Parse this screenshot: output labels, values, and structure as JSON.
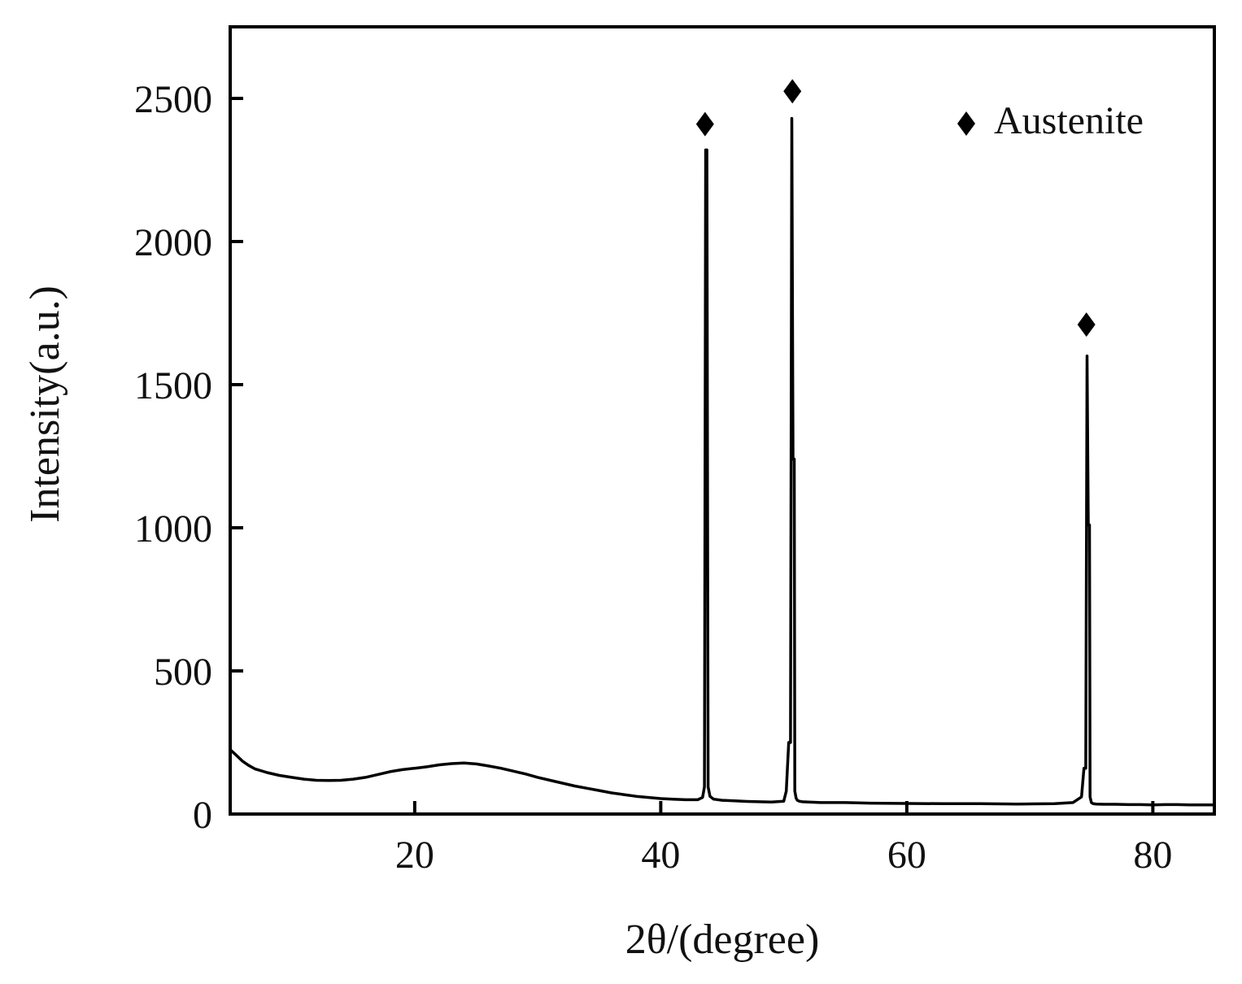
{
  "chart_data": {
    "type": "line",
    "title": "",
    "xlabel": "2θ/(degree)",
    "ylabel": "Intensity(a.u.)",
    "xlim": [
      5,
      85
    ],
    "ylim": [
      0,
      2750
    ],
    "xticks": [
      20,
      40,
      60,
      80
    ],
    "xtick_labels": [
      "20",
      "40",
      "60",
      "80"
    ],
    "yticks": [
      0,
      500,
      1000,
      1500,
      2000,
      2500
    ],
    "ytick_labels": [
      "0",
      "500",
      "1000",
      "1500",
      "2000",
      "2500"
    ],
    "grid": false,
    "legend": {
      "position": "top-right",
      "entries": [
        {
          "marker": "diamond",
          "label": "Austenite"
        }
      ]
    },
    "series": [
      {
        "color": "#000000",
        "x": [
          5,
          5.5,
          6,
          6.5,
          7,
          8,
          9,
          10,
          11,
          12,
          13,
          14,
          15,
          16,
          17,
          18,
          19,
          20,
          21,
          22,
          23,
          24,
          25,
          26,
          27,
          28,
          29,
          30,
          31,
          32,
          33,
          34,
          35,
          36,
          37,
          38,
          39,
          40,
          41,
          42,
          43,
          43.4,
          43.55,
          43.65,
          43.7,
          43.75,
          43.85,
          44.0,
          44.3,
          45,
          46,
          47,
          48,
          49,
          50,
          50.2,
          50.4,
          50.5,
          50.55,
          50.65,
          50.75,
          50.8,
          50.85,
          50.9,
          51.0,
          51.1,
          51.25,
          51.5,
          52,
          53,
          55,
          57,
          60,
          63,
          66,
          69,
          72,
          73.5,
          74.2,
          74.4,
          74.5,
          74.55,
          74.65,
          74.75,
          74.8,
          74.85,
          74.9,
          75.0,
          75.15,
          75.4,
          76,
          77,
          78,
          79,
          80,
          81,
          82,
          83,
          84,
          85
        ],
        "y": [
          225,
          205,
          185,
          170,
          158,
          145,
          135,
          128,
          122,
          118,
          117,
          118,
          122,
          128,
          138,
          148,
          155,
          160,
          165,
          172,
          176,
          178,
          175,
          168,
          160,
          150,
          140,
          128,
          118,
          108,
          98,
          90,
          82,
          74,
          68,
          62,
          58,
          54,
          52,
          50,
          50,
          58,
          95,
          2320,
          2320,
          2320,
          95,
          62,
          52,
          48,
          46,
          44,
          43,
          42,
          45,
          80,
          250,
          250,
          250,
          2430,
          1240,
          1240,
          1240,
          80,
          55,
          48,
          45,
          43,
          42,
          40,
          40,
          38,
          37,
          36,
          36,
          35,
          36,
          40,
          60,
          160,
          160,
          160,
          1600,
          1010,
          1010,
          1010,
          60,
          40,
          36,
          35,
          34,
          34,
          33,
          33,
          32,
          33,
          33,
          32,
          32,
          32
        ]
      }
    ],
    "annotations": [
      {
        "marker": "diamond",
        "x": 43.6,
        "y": 2410
      },
      {
        "marker": "diamond",
        "x": 50.7,
        "y": 2525
      },
      {
        "marker": "diamond",
        "x": 74.6,
        "y": 1710
      }
    ]
  }
}
